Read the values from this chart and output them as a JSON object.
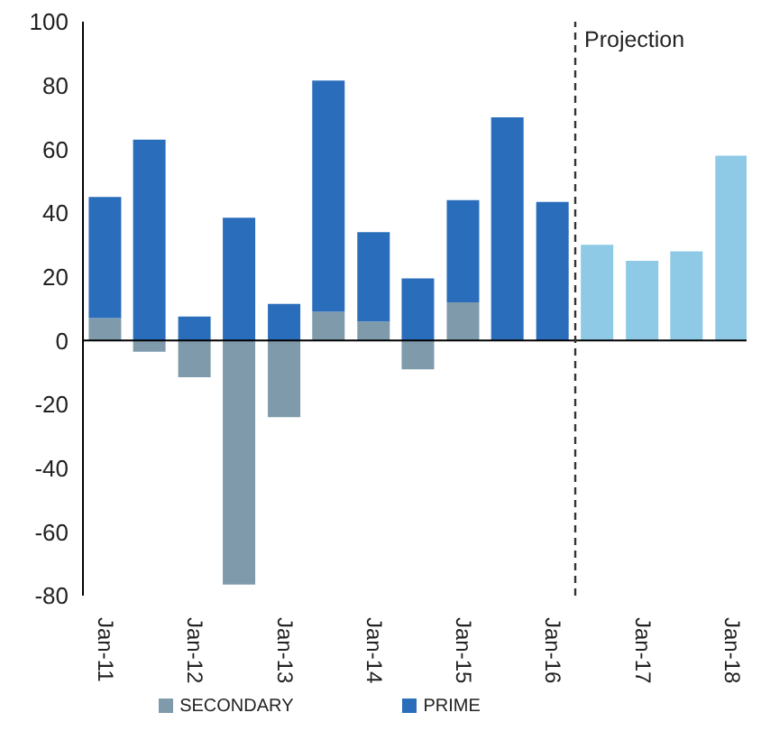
{
  "chart_data": {
    "type": "bar",
    "stacked": true,
    "x": [
      "2011-01",
      "2011-07",
      "2012-01",
      "2012-07",
      "2013-01",
      "2013-07",
      "2014-01",
      "2014-07",
      "2015-01",
      "2015-07",
      "2016-01",
      "2016-07",
      "2017-01",
      "2017-07",
      "2018-01"
    ],
    "series": [
      {
        "name": "SECONDARY",
        "color": "#7f9aab",
        "values": [
          7,
          -3.5,
          -11.5,
          -76.5,
          -24,
          9,
          6,
          -9,
          12,
          null,
          null,
          null,
          null,
          null,
          null
        ]
      },
      {
        "name": "PRIME",
        "color": "#2a6ebb",
        "values": [
          38,
          63,
          7.5,
          38.5,
          11.5,
          72.5,
          28,
          19.5,
          32,
          70,
          43.5,
          null,
          null,
          null,
          null
        ]
      },
      {
        "color": "#8ecae6",
        "values": [
          null,
          null,
          null,
          null,
          null,
          null,
          null,
          null,
          null,
          null,
          null,
          30,
          25,
          28,
          58
        ]
      }
    ],
    "xlim": [
      "2010-10",
      "2018-03"
    ],
    "xticks": [
      {
        "value": "2011-01",
        "label": "Jan-11"
      },
      {
        "value": "2012-01",
        "label": "Jan-12"
      },
      {
        "value": "2013-01",
        "label": "Jan-13"
      },
      {
        "value": "2014-01",
        "label": "Jan-14"
      },
      {
        "value": "2015-01",
        "label": "Jan-15"
      },
      {
        "value": "2016-01",
        "label": "Jan-16"
      },
      {
        "value": "2017-01",
        "label": "Jan-17"
      },
      {
        "value": "2018-01",
        "label": "Jan-18"
      }
    ],
    "ylim": [
      -80,
      100
    ],
    "yticks": [
      -80,
      -60,
      -40,
      -20,
      0,
      20,
      40,
      60,
      80,
      100
    ],
    "ref_lines": [
      {
        "axis": "x",
        "value": "2016-04",
        "label": "Projection",
        "color": "#333333",
        "line_style": "dashed"
      }
    ],
    "legend": "bottom"
  }
}
